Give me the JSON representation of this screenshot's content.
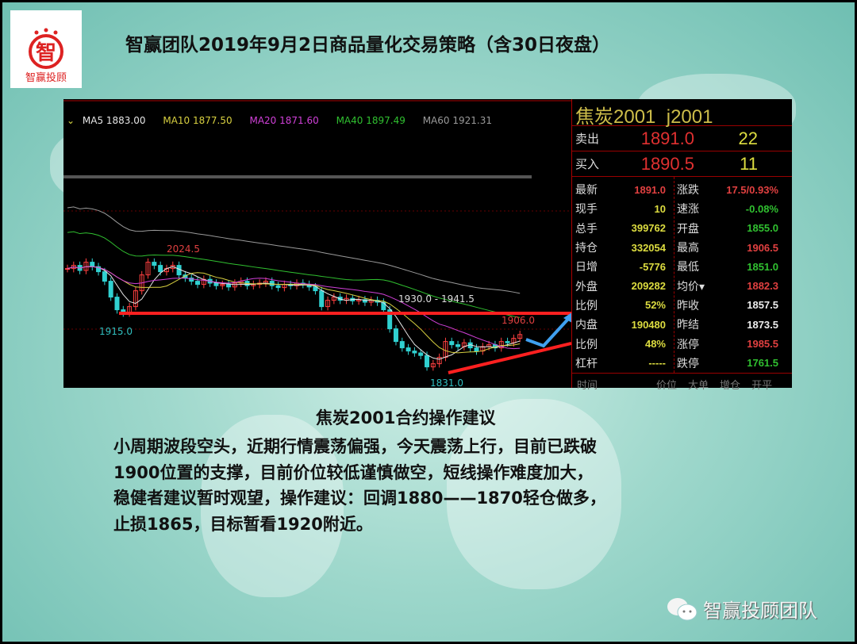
{
  "logo": {
    "text": "智赢投顾"
  },
  "title": "智赢团队2019年9月2日商品量化交易策略（含30日夜盘）",
  "chart": {
    "ma": [
      {
        "label": "MA5 1883.00",
        "color": "#e6e6e6"
      },
      {
        "label": "MA10 1877.50",
        "color": "#d8d040"
      },
      {
        "label": "MA20 1871.60",
        "color": "#d040d8"
      },
      {
        "label": "MA40 1897.49",
        "color": "#30c030"
      },
      {
        "label": "MA60 1921.31",
        "color": "#9a9a9a"
      }
    ],
    "annotations": {
      "high": "2024.5",
      "low1": "1915.0",
      "range": "1930.0 - 1941.5",
      "recent_high": "1906.0",
      "low2": "1831.0"
    },
    "colors": {
      "up": "#ff4040",
      "down": "#30d0d0",
      "trendline": "#ff2020",
      "forecast": "#3fa0f0"
    },
    "closes": [
      1995,
      2000,
      1992,
      2005,
      1998,
      1990,
      1975,
      1950,
      1930,
      1925,
      1935,
      1960,
      1985,
      2005,
      2000,
      1990,
      1995,
      2000,
      1985,
      1980,
      1975,
      1970,
      1978,
      1972,
      1968,
      1970,
      1966,
      1972,
      1975,
      1968,
      1970,
      1972,
      1975,
      1968,
      1965,
      1970,
      1968,
      1972,
      1970,
      1966,
      1960,
      1935,
      1945,
      1950,
      1945,
      1948,
      1944,
      1946,
      1942,
      1945,
      1942,
      1930,
      1900,
      1880,
      1870,
      1865,
      1862,
      1858,
      1840,
      1845,
      1855,
      1880,
      1875,
      1872,
      1878,
      1870,
      1865,
      1872,
      1875,
      1870,
      1880,
      1878,
      1885,
      1891
    ]
  },
  "panel": {
    "name": "焦炭2001",
    "code": "j2001",
    "sell": {
      "label": "卖出",
      "price": "1891.0",
      "vol": "22"
    },
    "buy": {
      "label": "买入",
      "price": "1890.5",
      "vol": "11"
    },
    "rows": [
      {
        "l": "最新",
        "v": "1891.0",
        "vc": "#e04040",
        "l2": "涨跌",
        "v2": "17.5/0.93%",
        "v2c": "#e04040"
      },
      {
        "l": "现手",
        "v": "10",
        "vc": "#dddd40",
        "l2": "速涨",
        "v2": "-0.08%",
        "v2c": "#30c030"
      },
      {
        "l": "总手",
        "v": "399762",
        "vc": "#dddd40",
        "l2": "开盘",
        "v2": "1855.0",
        "v2c": "#30c030"
      },
      {
        "l": "持仓",
        "v": "332054",
        "vc": "#dddd40",
        "l2": "最高",
        "v2": "1906.5",
        "v2c": "#e04040"
      },
      {
        "l": "日增",
        "v": "-5776",
        "vc": "#dddd40",
        "l2": "最低",
        "v2": "1851.0",
        "v2c": "#30c030"
      },
      {
        "l": "外盘",
        "v": "209282",
        "vc": "#dddd40",
        "l2": "均价▾",
        "v2": "1882.3",
        "v2c": "#e04040"
      },
      {
        "l": "比例",
        "v": "52%",
        "vc": "#dddd40",
        "l2": "昨收",
        "v2": "1857.5",
        "v2c": "#eeeeee"
      },
      {
        "l": "内盘",
        "v": "190480",
        "vc": "#dddd40",
        "l2": "昨结",
        "v2": "1873.5",
        "v2c": "#eeeeee"
      },
      {
        "l": "比例",
        "v": "48%",
        "vc": "#dddd40",
        "l2": "涨停",
        "v2": "1985.5",
        "v2c": "#e04040"
      },
      {
        "l": "杠杆",
        "v": "-----",
        "vc": "#dddd40",
        "l2": "跌停",
        "v2": "1761.5",
        "v2c": "#30c030"
      }
    ],
    "footer": [
      "时间",
      "价位",
      "大单",
      "增仓",
      "开平"
    ]
  },
  "subtitle": "焦炭2001合约操作建议",
  "paragraph": [
    "小周期波段空头，近期行情震荡偏强，今天震荡上行，目前已跌破",
    "1900位置的支撑，目前价位较低谨慎做空，短线操作难度加大，",
    "稳健者建议暂时观望，操作建议：回调1880——1870轻仓做多，",
    "止损1865，目标暂看1920附近。"
  ],
  "wechat": {
    "account": "智赢投顾团队"
  }
}
